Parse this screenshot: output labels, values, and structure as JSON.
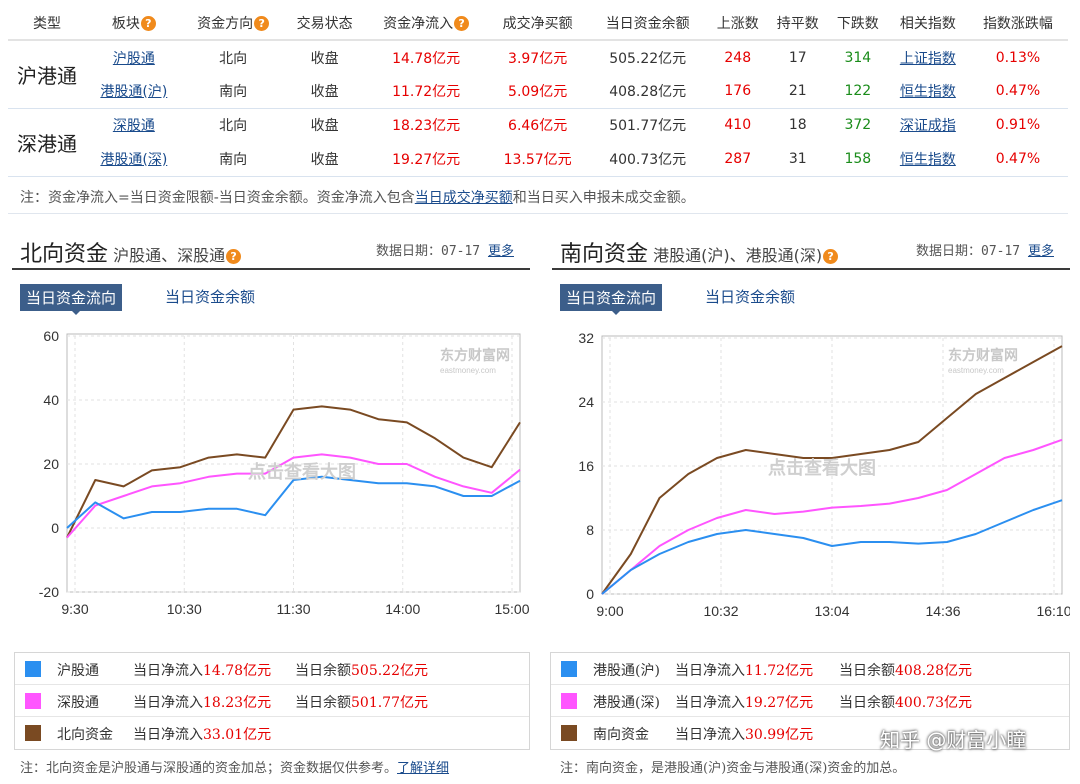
{
  "table": {
    "headers": [
      "类型",
      "板块",
      "资金方向",
      "交易状态",
      "资金净流入",
      "成交净买额",
      "当日资金余额",
      "上涨数",
      "持平数",
      "下跌数",
      "相关指数",
      "指数涨跌幅"
    ],
    "groups": [
      {
        "name": "沪港通",
        "rows": [
          {
            "board": "沪股通",
            "direction": "北向",
            "status": "收盘",
            "net_inflow": "14.78亿元",
            "net_buy": "3.97亿元",
            "balance": "505.22亿元",
            "up": "248",
            "flat": "17",
            "down": "314",
            "index": "上证指数",
            "index_change": "0.13%"
          },
          {
            "board": "港股通(沪)",
            "direction": "南向",
            "status": "收盘",
            "net_inflow": "11.72亿元",
            "net_buy": "5.09亿元",
            "balance": "408.28亿元",
            "up": "176",
            "flat": "21",
            "down": "122",
            "index": "恒生指数",
            "index_change": "0.47%"
          }
        ]
      },
      {
        "name": "深港通",
        "rows": [
          {
            "board": "深股通",
            "direction": "北向",
            "status": "收盘",
            "net_inflow": "18.23亿元",
            "net_buy": "6.46亿元",
            "balance": "501.77亿元",
            "up": "410",
            "flat": "18",
            "down": "372",
            "index": "深证成指",
            "index_change": "0.91%"
          },
          {
            "board": "港股通(深)",
            "direction": "南向",
            "status": "收盘",
            "net_inflow": "19.27亿元",
            "net_buy": "13.57亿元",
            "balance": "400.73亿元",
            "up": "287",
            "flat": "31",
            "down": "158",
            "index": "恒生指数",
            "index_change": "0.47%"
          }
        ]
      }
    ],
    "note_prefix": "注：资金净流入=当日资金限额-当日资金余额。资金净流入包含",
    "note_link": "当日成交净买额",
    "note_suffix": "和当日买入申报未成交金额。"
  },
  "north": {
    "title": "北向资金",
    "subtitle": "沪股通、深股通",
    "date_label": "数据日期：07-17",
    "more": "更多",
    "tab_active": "当日资金流向",
    "tab_inactive": "当日资金余额",
    "watermark_center": "点击查看大图",
    "watermark_brand": "东方财富网",
    "watermark_domain": "eastmoney.com",
    "legend": [
      {
        "name": "沪股通",
        "color": "#2b8ff0",
        "inflow_label": "当日净流入",
        "inflow": "14.78亿元",
        "balance_label": "当日余额",
        "balance": "505.22亿元"
      },
      {
        "name": "深股通",
        "color": "#ff55ff",
        "inflow_label": "当日净流入",
        "inflow": "18.23亿元",
        "balance_label": "当日余额",
        "balance": "501.77亿元"
      },
      {
        "name": "北向资金",
        "color": "#7a4a22",
        "inflow_label": "当日净流入",
        "inflow": "33.01亿元",
        "balance_label": "",
        "balance": ""
      }
    ],
    "footnote": "注：北向资金是沪股通与深股通的资金加总；资金数据仅供参考。",
    "footnote_link": "了解详细"
  },
  "south": {
    "title": "南向资金",
    "subtitle": "港股通(沪)、港股通(深)",
    "date_label": "数据日期：07-17",
    "more": "更多",
    "tab_active": "当日资金流向",
    "tab_inactive": "当日资金余额",
    "watermark_center": "点击查看大图",
    "watermark_brand": "东方财富网",
    "watermark_domain": "eastmoney.com",
    "legend": [
      {
        "name": "港股通(沪)",
        "color": "#2b8ff0",
        "inflow_label": "当日净流入",
        "inflow": "11.72亿元",
        "balance_label": "当日余额",
        "balance": "408.28亿元"
      },
      {
        "name": "港股通(深)",
        "color": "#ff55ff",
        "inflow_label": "当日净流入",
        "inflow": "19.27亿元",
        "balance_label": "当日余额",
        "balance": "400.73亿元"
      },
      {
        "name": "南向资金",
        "color": "#7a4a22",
        "inflow_label": "当日净流入",
        "inflow": "30.99亿元",
        "balance_label": "",
        "balance": ""
      }
    ],
    "footnote": "注：南向资金，是港股通(沪)资金与港股通(深)资金的加总。"
  },
  "overlay_watermark": "知乎 @财富小瞳",
  "chart_data": [
    {
      "type": "line",
      "ylim": [
        -20,
        60
      ],
      "yticks": [
        60,
        40,
        20,
        0,
        -20
      ],
      "xticks": [
        "9:30",
        "10:30",
        "11:30",
        "14:00",
        "15:00"
      ],
      "x": [
        "9:30",
        "9:45",
        "10:00",
        "10:15",
        "10:30",
        "10:45",
        "11:00",
        "11:15",
        "11:30",
        "13:15",
        "13:30",
        "13:45",
        "14:00",
        "14:15",
        "14:30",
        "14:45",
        "15:00"
      ],
      "grid": true,
      "series": [
        {
          "name": "沪股通",
          "color": "#2b8ff0",
          "values": [
            0,
            8,
            3,
            5,
            5,
            6,
            6,
            4,
            15,
            16,
            15,
            14,
            14,
            13,
            10,
            10,
            14.78
          ]
        },
        {
          "name": "深股通",
          "color": "#ff55ff",
          "values": [
            -3,
            7,
            10,
            13,
            14,
            16,
            17,
            17,
            22,
            23,
            22,
            20,
            20,
            16,
            13,
            11,
            18.23
          ]
        },
        {
          "name": "北向资金",
          "color": "#7a4a22",
          "values": [
            -3,
            15,
            13,
            18,
            19,
            22,
            23,
            22,
            37,
            38,
            37,
            34,
            33,
            28,
            22,
            19,
            33.01
          ]
        }
      ]
    },
    {
      "type": "line",
      "ylim": [
        0,
        32
      ],
      "yticks": [
        32,
        24,
        16,
        8,
        0
      ],
      "xticks": [
        "9:00",
        "10:32",
        "13:04",
        "14:36",
        "16:10"
      ],
      "x": [
        "9:00",
        "9:23",
        "9:46",
        "10:09",
        "10:32",
        "10:55",
        "11:18",
        "11:41",
        "13:04",
        "13:27",
        "13:50",
        "14:13",
        "14:36",
        "14:59",
        "15:22",
        "15:45",
        "16:10"
      ],
      "grid": true,
      "series": [
        {
          "name": "港股通(沪)",
          "color": "#2b8ff0",
          "values": [
            0,
            3,
            5,
            6.5,
            7.5,
            8,
            7.5,
            7,
            6,
            6.5,
            6.5,
            6.3,
            6.5,
            7.5,
            9,
            10.5,
            11.72
          ]
        },
        {
          "name": "港股通(深)",
          "color": "#ff55ff",
          "values": [
            0,
            3,
            6,
            8,
            9.5,
            10.5,
            10,
            10.3,
            10.8,
            11,
            11.3,
            12,
            13,
            15,
            17,
            18,
            19.27
          ]
        },
        {
          "name": "南向资金",
          "color": "#7a4a22",
          "values": [
            0,
            5,
            12,
            15,
            17,
            18,
            17.5,
            17,
            17,
            17.5,
            18,
            19,
            22,
            25,
            27,
            29,
            30.99
          ]
        }
      ]
    }
  ]
}
